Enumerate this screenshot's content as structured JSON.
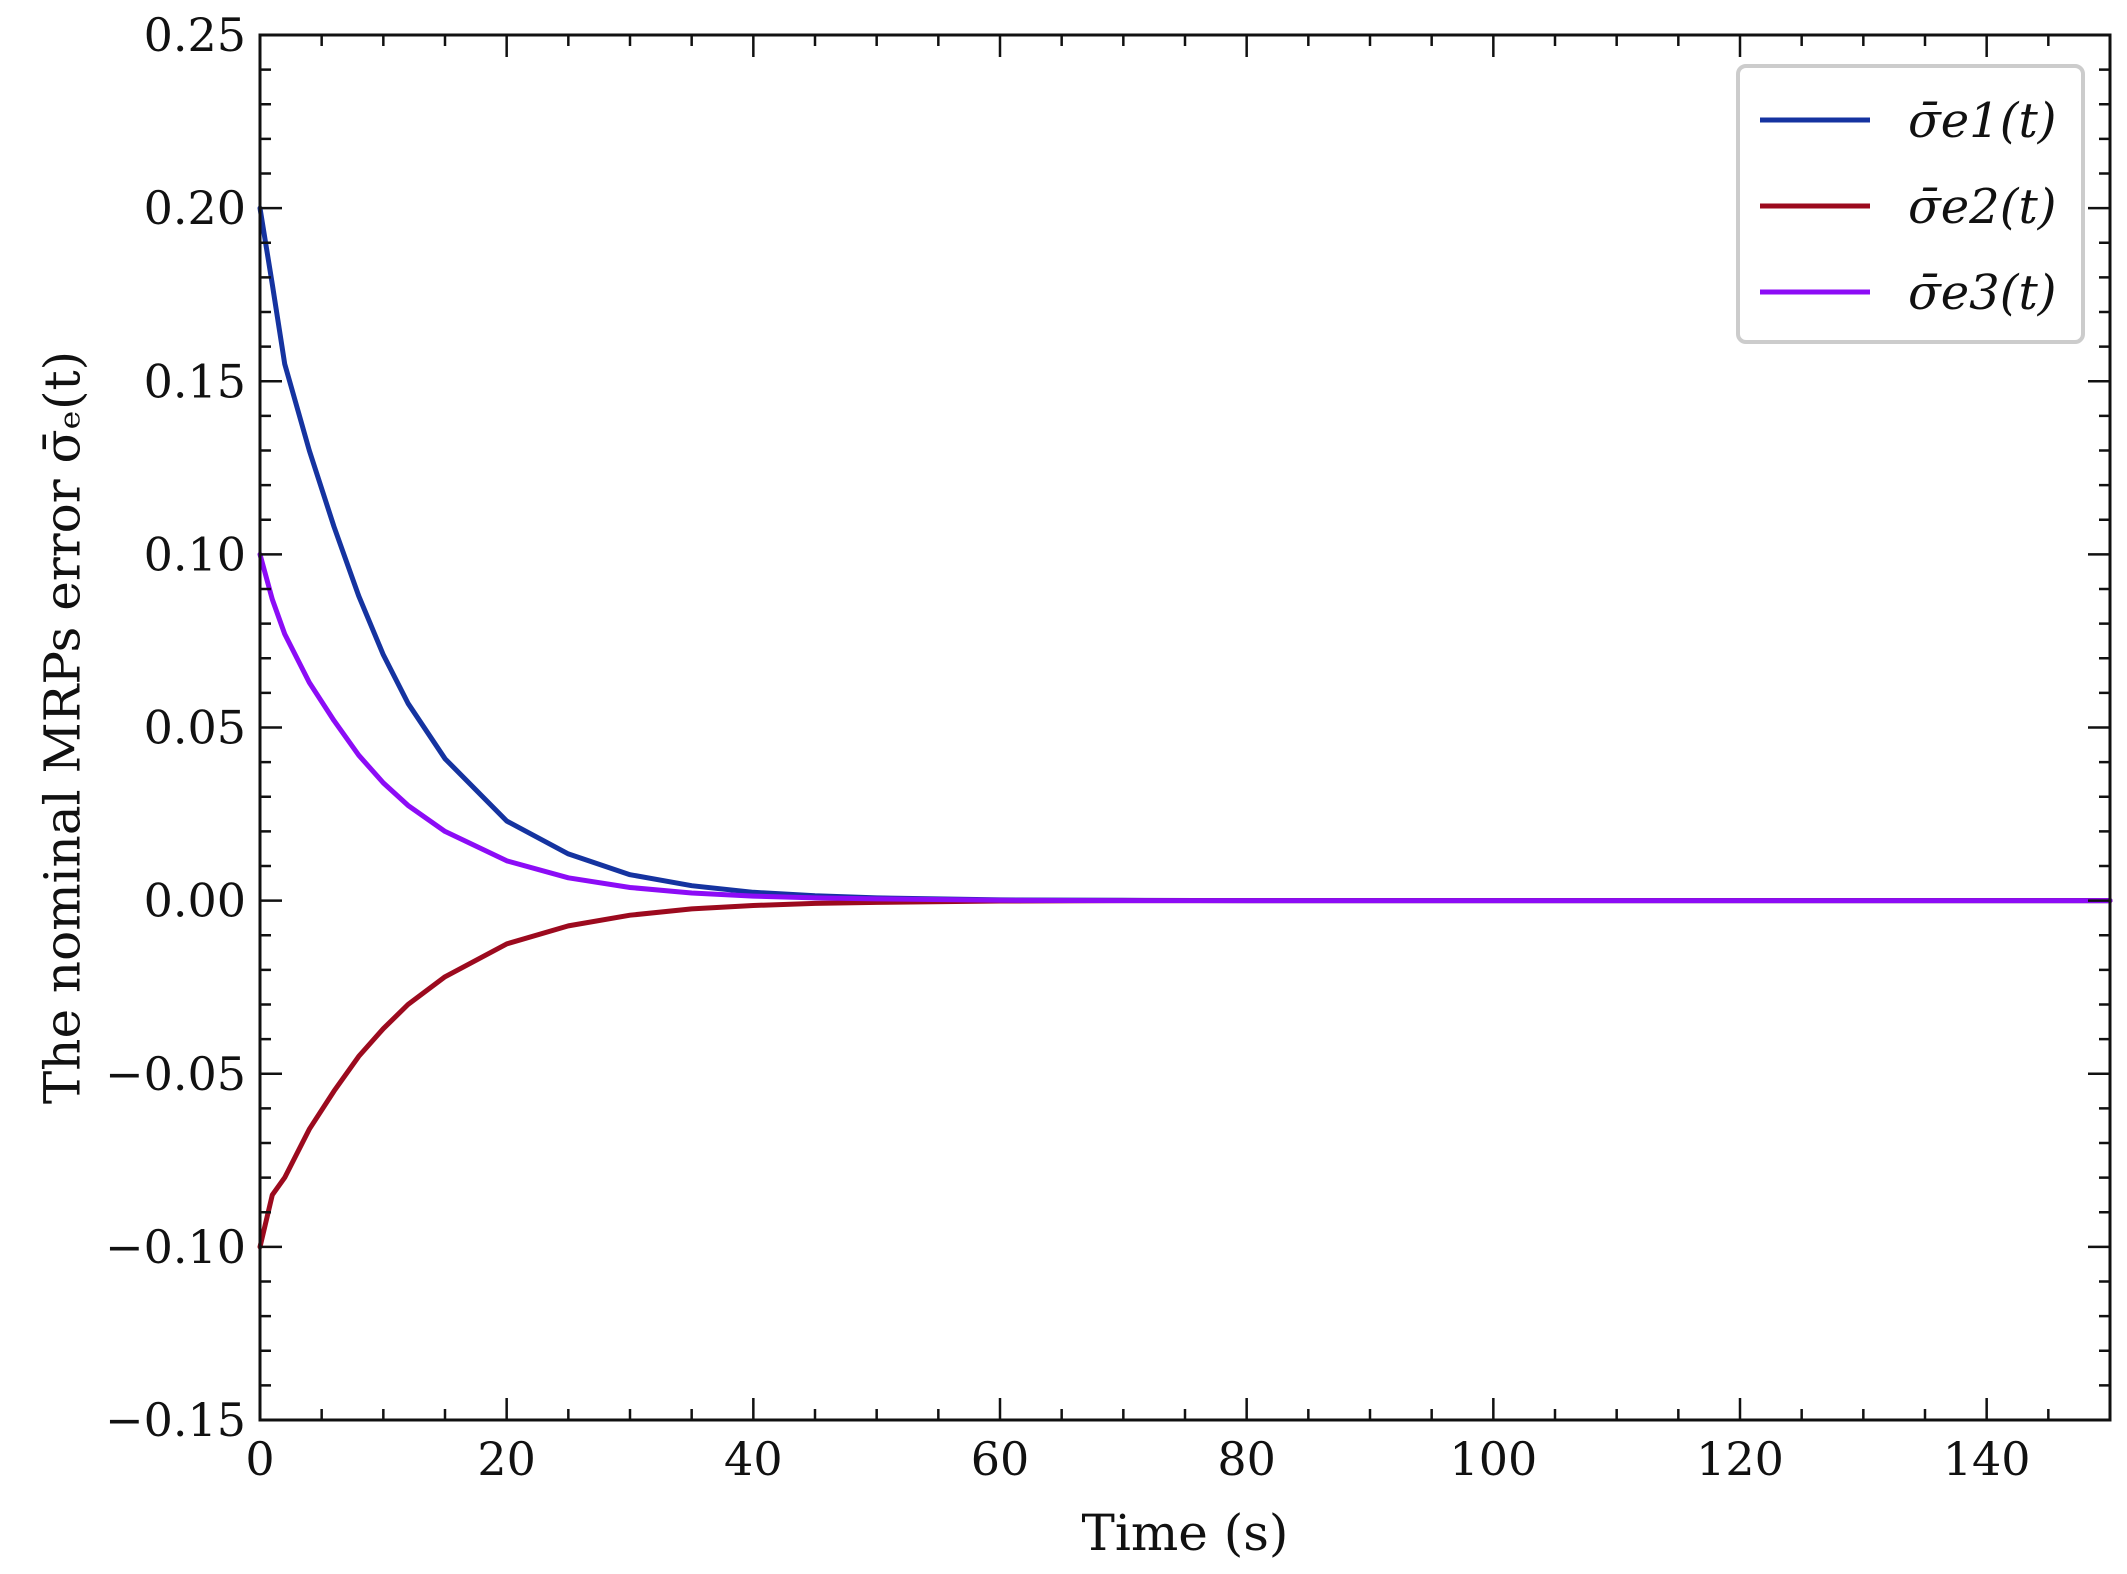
{
  "chart_data": {
    "type": "line",
    "xlabel": "Time (s)",
    "ylabel": "The nominal MRPs error σ̄ₑ(t)",
    "xlim": [
      0,
      150
    ],
    "ylim": [
      -0.15,
      0.25
    ],
    "xticks": [
      0,
      20,
      40,
      60,
      80,
      100,
      120,
      140
    ],
    "xtick_labels": [
      "0",
      "20",
      "40",
      "60",
      "80",
      "100",
      "120",
      "140"
    ],
    "yticks": [
      -0.15,
      -0.1,
      -0.05,
      0.0,
      0.05,
      0.1,
      0.15,
      0.2,
      0.25
    ],
    "ytick_labels": [
      "−0.15",
      "−0.10",
      "−0.05",
      "0.00",
      "0.05",
      "0.10",
      "0.15",
      "0.20",
      "0.25"
    ],
    "grid": false,
    "legend_position": "top-right",
    "series": [
      {
        "name": "σ̄e1(t)",
        "color": "#1533a0",
        "x": [
          0,
          1,
          2,
          4,
          6,
          8,
          10,
          12,
          15,
          20,
          25,
          30,
          35,
          40,
          45,
          50,
          60,
          70,
          80,
          100,
          120,
          150
        ],
        "y": [
          0.2,
          0.178,
          0.155,
          0.13,
          0.108,
          0.088,
          0.071,
          0.057,
          0.041,
          0.023,
          0.0135,
          0.0075,
          0.0043,
          0.0024,
          0.0014,
          0.0008,
          0.0002,
          0.0001,
          0.0,
          0.0,
          0.0,
          0.0
        ]
      },
      {
        "name": "σ̄e2(t)",
        "color": "#9c0a1e",
        "x": [
          0,
          1,
          2,
          4,
          6,
          8,
          10,
          12,
          15,
          20,
          25,
          30,
          35,
          40,
          45,
          50,
          60,
          70,
          80,
          100,
          120,
          150
        ],
        "y": [
          -0.1,
          -0.085,
          -0.08,
          -0.066,
          -0.055,
          -0.045,
          -0.037,
          -0.03,
          -0.022,
          -0.0125,
          -0.0073,
          -0.0042,
          -0.0024,
          -0.0014,
          -0.0008,
          -0.0005,
          -0.0001,
          0.0,
          0.0,
          0.0,
          0.0,
          0.0
        ]
      },
      {
        "name": "σ̄e3(t)",
        "color": "#8c0cf6",
        "x": [
          0,
          1,
          2,
          4,
          6,
          8,
          10,
          12,
          15,
          20,
          25,
          30,
          35,
          40,
          45,
          50,
          60,
          70,
          80,
          100,
          120,
          150
        ],
        "y": [
          0.1,
          0.087,
          0.077,
          0.063,
          0.052,
          0.042,
          0.034,
          0.0275,
          0.02,
          0.0115,
          0.0066,
          0.0038,
          0.0022,
          0.0013,
          0.0008,
          0.0005,
          0.0001,
          0.0,
          0.0,
          0.0,
          0.0,
          0.0
        ]
      }
    ]
  }
}
